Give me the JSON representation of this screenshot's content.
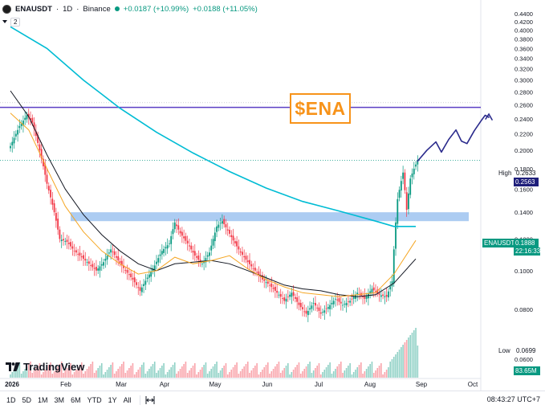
{
  "header": {
    "symbol": "ENAUSDT",
    "separator1": "·",
    "timeframe": "1D",
    "separator2": "·",
    "exchange": "Binance",
    "change1": "+0.0187 (+10.99%)",
    "change2": "+0.0188 (+11.05%)",
    "indicators_count": "2"
  },
  "watermark_text": "$ENA",
  "brand": "TradingView",
  "labels": {
    "high_label": "High",
    "high_value": "0.2633",
    "level_value": "0.2563",
    "symbol_tag": "ENAUSDT",
    "current_price": "0.1888",
    "countdown": "22:16:33",
    "low_label": "Low",
    "low_value": "0.0699",
    "volume_value": "83.65M"
  },
  "bottom_bar": {
    "ranges": [
      "1D",
      "5D",
      "1M",
      "3M",
      "6M",
      "YTD",
      "1Y",
      "All"
    ],
    "clock": "08:43:27 UTC+7"
  },
  "colors": {
    "up": "#089981",
    "down": "#f23645",
    "ma_cyan": "#00bcd4",
    "ma_black": "#131722",
    "ma_orange": "#f5a623",
    "resistance": "#5b3fc4",
    "support_zone": "#9dc3f0",
    "projection": "#2a2a8c",
    "brand_orange": "#f7931a"
  },
  "chart_data": {
    "type": "candlestick",
    "pair": "ENAUSDT",
    "interval": "1D",
    "exchange": "Binance",
    "y_axis": {
      "ticks": [
        "0.4400",
        "0.4200",
        "0.4000",
        "0.3800",
        "0.3600",
        "0.3400",
        "0.3200",
        "0.3000",
        "0.2800",
        "0.2600",
        "0.2400",
        "0.2200",
        "0.2000",
        "0.1800",
        "0.1600",
        "0.1400",
        "0.1200",
        "0.1000",
        "0.0800",
        "0.0600"
      ],
      "scale": "log"
    },
    "x_axis": {
      "ticks": [
        "2026",
        "Feb",
        "Mar",
        "Apr",
        "May",
        "Jun",
        "Jul",
        "Aug",
        "Sep",
        "Oct"
      ]
    },
    "resistance_level": 0.2563,
    "support_zone": [
      0.133,
      0.14
    ],
    "high": 0.2633,
    "low": 0.0699,
    "last_price": 0.1888,
    "last_volume": "83.65M",
    "price_path": [
      [
        0,
        0.205
      ],
      [
        5,
        0.23
      ],
      [
        9,
        0.245
      ],
      [
        12,
        0.235
      ],
      [
        16,
        0.2
      ],
      [
        20,
        0.165
      ],
      [
        24,
        0.14
      ],
      [
        27,
        0.12
      ],
      [
        31,
        0.118
      ],
      [
        35,
        0.112
      ],
      [
        39,
        0.108
      ],
      [
        43,
        0.104
      ],
      [
        47,
        0.1
      ],
      [
        51,
        0.105
      ],
      [
        55,
        0.113
      ],
      [
        59,
        0.106
      ],
      [
        63,
        0.1
      ],
      [
        67,
        0.095
      ],
      [
        71,
        0.089
      ],
      [
        75,
        0.096
      ],
      [
        79,
        0.103
      ],
      [
        83,
        0.112
      ],
      [
        87,
        0.117
      ],
      [
        90,
        0.132
      ],
      [
        93,
        0.124
      ],
      [
        97,
        0.117
      ],
      [
        101,
        0.109
      ],
      [
        105,
        0.104
      ],
      [
        109,
        0.111
      ],
      [
        113,
        0.129
      ],
      [
        116,
        0.133
      ],
      [
        119,
        0.126
      ],
      [
        122,
        0.119
      ],
      [
        126,
        0.111
      ],
      [
        130,
        0.105
      ],
      [
        134,
        0.1
      ],
      [
        138,
        0.095
      ],
      [
        142,
        0.092
      ],
      [
        146,
        0.088
      ],
      [
        150,
        0.084
      ],
      [
        154,
        0.088
      ],
      [
        158,
        0.082
      ],
      [
        162,
        0.078
      ],
      [
        166,
        0.083
      ],
      [
        170,
        0.078
      ],
      [
        174,
        0.081
      ],
      [
        178,
        0.085
      ],
      [
        182,
        0.082
      ],
      [
        186,
        0.084
      ],
      [
        190,
        0.088
      ],
      [
        194,
        0.085
      ],
      [
        198,
        0.09
      ],
      [
        202,
        0.087
      ],
      [
        206,
        0.086
      ],
      [
        209,
        0.094
      ],
      [
        212,
        0.151
      ],
      [
        215,
        0.176
      ],
      [
        217,
        0.142
      ],
      [
        219,
        0.17
      ],
      [
        221,
        0.18
      ],
      [
        223,
        0.1888
      ]
    ],
    "moving_averages": [
      {
        "color": "cyan",
        "points": [
          [
            0,
            0.408
          ],
          [
            20,
            0.36
          ],
          [
            40,
            0.3
          ],
          [
            60,
            0.255
          ],
          [
            80,
            0.222
          ],
          [
            100,
            0.197
          ],
          [
            120,
            0.177
          ],
          [
            140,
            0.161
          ],
          [
            160,
            0.149
          ],
          [
            180,
            0.141
          ],
          [
            200,
            0.133
          ],
          [
            210,
            0.129
          ],
          [
            222,
            0.129
          ]
        ]
      },
      {
        "color": "black",
        "points": [
          [
            0,
            0.282
          ],
          [
            10,
            0.243
          ],
          [
            20,
            0.195
          ],
          [
            30,
            0.16
          ],
          [
            40,
            0.138
          ],
          [
            50,
            0.123
          ],
          [
            60,
            0.112
          ],
          [
            70,
            0.104
          ],
          [
            80,
            0.1
          ],
          [
            90,
            0.104
          ],
          [
            100,
            0.105
          ],
          [
            110,
            0.106
          ],
          [
            120,
            0.104
          ],
          [
            130,
            0.1
          ],
          [
            140,
            0.096
          ],
          [
            150,
            0.092
          ],
          [
            160,
            0.09
          ],
          [
            170,
            0.089
          ],
          [
            180,
            0.087
          ],
          [
            190,
            0.086
          ],
          [
            200,
            0.087
          ],
          [
            210,
            0.093
          ],
          [
            222,
            0.107
          ]
        ]
      },
      {
        "color": "orange",
        "points": [
          [
            0,
            0.248
          ],
          [
            10,
            0.225
          ],
          [
            20,
            0.18
          ],
          [
            30,
            0.145
          ],
          [
            40,
            0.125
          ],
          [
            50,
            0.112
          ],
          [
            60,
            0.104
          ],
          [
            70,
            0.098
          ],
          [
            80,
            0.1
          ],
          [
            90,
            0.108
          ],
          [
            100,
            0.104
          ],
          [
            110,
            0.106
          ],
          [
            120,
            0.109
          ],
          [
            130,
            0.101
          ],
          [
            140,
            0.095
          ],
          [
            150,
            0.091
          ],
          [
            160,
            0.088
          ],
          [
            170,
            0.087
          ],
          [
            180,
            0.086
          ],
          [
            190,
            0.087
          ],
          [
            200,
            0.088
          ],
          [
            210,
            0.098
          ],
          [
            222,
            0.119
          ]
        ]
      }
    ],
    "projection_path": [
      [
        223,
        0.188
      ],
      [
        228,
        0.2
      ],
      [
        233,
        0.21
      ],
      [
        236,
        0.198
      ],
      [
        240,
        0.213
      ],
      [
        244,
        0.225
      ],
      [
        247,
        0.211
      ],
      [
        250,
        0.208
      ],
      [
        254,
        0.224
      ],
      [
        258,
        0.238
      ],
      [
        260,
        0.245
      ],
      [
        262,
        0.242
      ]
    ]
  }
}
